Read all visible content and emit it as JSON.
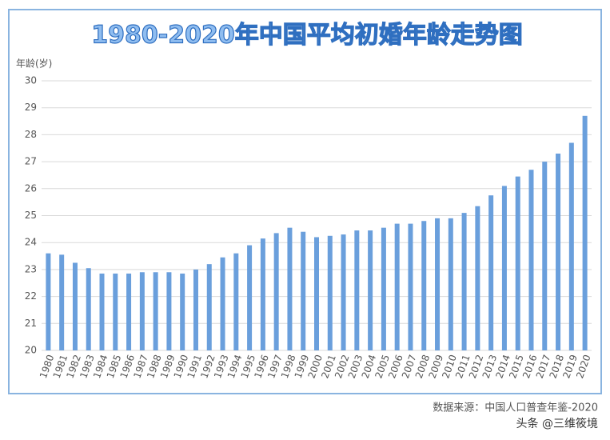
{
  "chart_data": {
    "type": "bar",
    "title": "1980-2020年中国平均初婚年龄走势图",
    "y_label": "年龄(岁)",
    "source": "数据来源：中国人口普查年鉴-2020",
    "watermark": "头条 @三维筱境",
    "categories": [
      "1980",
      "1981",
      "1982",
      "1983",
      "1984",
      "1985",
      "1986",
      "1987",
      "1988",
      "1989",
      "1990",
      "1991",
      "1992",
      "1993",
      "1994",
      "1995",
      "1996",
      "1997",
      "1998",
      "1999",
      "2000",
      "2001",
      "2002",
      "2003",
      "2004",
      "2005",
      "2006",
      "2007",
      "2008",
      "2009",
      "2010",
      "2011",
      "2012",
      "2013",
      "2014",
      "2015",
      "2016",
      "2017",
      "2018",
      "2019",
      "2020"
    ],
    "values": [
      23.6,
      23.55,
      23.25,
      23.05,
      22.85,
      22.85,
      22.85,
      22.9,
      22.9,
      22.9,
      22.85,
      23.0,
      23.2,
      23.45,
      23.6,
      23.9,
      24.15,
      24.35,
      24.55,
      24.4,
      24.2,
      24.25,
      24.3,
      24.45,
      24.45,
      24.55,
      24.7,
      24.7,
      24.8,
      24.9,
      24.9,
      25.1,
      25.35,
      25.75,
      26.1,
      26.45,
      26.7,
      27.0,
      27.3,
      27.7,
      28.7
    ],
    "color": "#6a9fdc",
    "ylim": [
      20,
      30
    ],
    "yticks": [
      20,
      21,
      22,
      23,
      24,
      25,
      26,
      27,
      28,
      29,
      30
    ],
    "grid": true
  }
}
